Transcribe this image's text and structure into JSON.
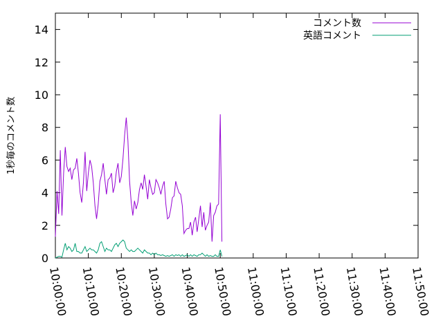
{
  "chart_data": {
    "type": "line",
    "title": "",
    "xlabel": "",
    "ylabel": "1秒毎のコメント数",
    "ylim": [
      0,
      15
    ],
    "y_ticks": [
      0,
      2,
      4,
      6,
      8,
      10,
      12,
      14
    ],
    "x_ticks": [
      "10:00:00",
      "10:10:00",
      "10:20:00",
      "10:30:00",
      "10:40:00",
      "10:50:00",
      "11:00:00",
      "11:10:00",
      "11:20:00",
      "11:30:00",
      "11:40:00",
      "11:50:00"
    ],
    "xlim": [
      "10:00:00",
      "11:50:00"
    ],
    "grid": false,
    "legend_position": "top-right",
    "series": [
      {
        "name": "コメント数",
        "color": "#9400d3",
        "points": [
          [
            "10:00:00",
            1.3
          ],
          [
            "10:00:30",
            4.1
          ],
          [
            "10:01:00",
            2.7
          ],
          [
            "10:01:30",
            6.6
          ],
          [
            "10:02:00",
            2.6
          ],
          [
            "10:02:30",
            5.2
          ],
          [
            "10:03:00",
            6.8
          ],
          [
            "10:03:30",
            5.6
          ],
          [
            "10:04:00",
            5.3
          ],
          [
            "10:04:30",
            5.5
          ],
          [
            "10:05:00",
            4.8
          ],
          [
            "10:05:30",
            5.4
          ],
          [
            "10:06:00",
            5.5
          ],
          [
            "10:06:30",
            6.1
          ],
          [
            "10:07:00",
            5.2
          ],
          [
            "10:07:30",
            4.0
          ],
          [
            "10:08:00",
            3.4
          ],
          [
            "10:08:30",
            4.6
          ],
          [
            "10:09:00",
            6.5
          ],
          [
            "10:09:30",
            4.1
          ],
          [
            "10:10:00",
            5.2
          ],
          [
            "10:10:30",
            6.0
          ],
          [
            "10:11:00",
            5.6
          ],
          [
            "10:11:30",
            4.6
          ],
          [
            "10:12:00",
            3.2
          ],
          [
            "10:12:30",
            2.4
          ],
          [
            "10:13:00",
            3.3
          ],
          [
            "10:13:30",
            4.7
          ],
          [
            "10:14:00",
            5.1
          ],
          [
            "10:14:30",
            5.8
          ],
          [
            "10:15:00",
            4.8
          ],
          [
            "10:15:30",
            3.9
          ],
          [
            "10:16:00",
            4.8
          ],
          [
            "10:16:30",
            4.9
          ],
          [
            "10:17:00",
            5.2
          ],
          [
            "10:17:30",
            4.0
          ],
          [
            "10:18:00",
            4.4
          ],
          [
            "10:18:30",
            5.3
          ],
          [
            "10:19:00",
            5.8
          ],
          [
            "10:19:30",
            4.6
          ],
          [
            "10:20:00",
            5.0
          ],
          [
            "10:20:30",
            6.1
          ],
          [
            "10:21:00",
            7.5
          ],
          [
            "10:21:30",
            8.6
          ],
          [
            "10:22:00",
            7.2
          ],
          [
            "10:22:30",
            4.7
          ],
          [
            "10:23:00",
            3.4
          ],
          [
            "10:23:30",
            2.6
          ],
          [
            "10:24:00",
            3.5
          ],
          [
            "10:24:30",
            3.0
          ],
          [
            "10:25:00",
            3.4
          ],
          [
            "10:25:30",
            4.2
          ],
          [
            "10:26:00",
            4.6
          ],
          [
            "10:26:30",
            4.2
          ],
          [
            "10:27:00",
            5.1
          ],
          [
            "10:27:30",
            4.4
          ],
          [
            "10:28:00",
            3.6
          ],
          [
            "10:28:30",
            4.8
          ],
          [
            "10:29:00",
            4.3
          ],
          [
            "10:29:30",
            3.9
          ],
          [
            "10:30:00",
            4.0
          ],
          [
            "10:30:30",
            4.8
          ],
          [
            "10:31:00",
            4.6
          ],
          [
            "10:31:30",
            4.3
          ],
          [
            "10:32:00",
            3.9
          ],
          [
            "10:32:30",
            4.4
          ],
          [
            "10:33:00",
            4.7
          ],
          [
            "10:33:30",
            3.3
          ],
          [
            "10:34:00",
            2.4
          ],
          [
            "10:34:30",
            2.5
          ],
          [
            "10:35:00",
            3.0
          ],
          [
            "10:35:30",
            3.7
          ],
          [
            "10:36:00",
            3.8
          ],
          [
            "10:36:30",
            4.7
          ],
          [
            "10:37:00",
            4.3
          ],
          [
            "10:37:30",
            4.0
          ],
          [
            "10:38:00",
            3.9
          ],
          [
            "10:38:30",
            3.2
          ],
          [
            "10:39:00",
            1.5
          ],
          [
            "10:39:30",
            1.7
          ],
          [
            "10:40:00",
            1.8
          ],
          [
            "10:40:30",
            1.8
          ],
          [
            "10:41:00",
            2.2
          ],
          [
            "10:41:30",
            1.4
          ],
          [
            "10:42:00",
            2.2
          ],
          [
            "10:42:30",
            2.5
          ],
          [
            "10:43:00",
            1.6
          ],
          [
            "10:43:30",
            2.4
          ],
          [
            "10:44:00",
            3.2
          ],
          [
            "10:44:30",
            1.9
          ],
          [
            "10:45:00",
            2.8
          ],
          [
            "10:45:30",
            1.7
          ],
          [
            "10:46:00",
            2.0
          ],
          [
            "10:46:30",
            2.2
          ],
          [
            "10:47:00",
            3.4
          ],
          [
            "10:47:30",
            1.0
          ],
          [
            "10:48:00",
            2.6
          ],
          [
            "10:48:30",
            2.8
          ],
          [
            "10:49:00",
            3.2
          ],
          [
            "10:49:30",
            3.3
          ],
          [
            "10:50:00",
            8.8
          ],
          [
            "10:50:30",
            1.0
          ]
        ]
      },
      {
        "name": "英語コメント",
        "color": "#009e73",
        "points": [
          [
            "10:00:00",
            0.0
          ],
          [
            "10:00:30",
            0.05
          ],
          [
            "10:01:00",
            0.1
          ],
          [
            "10:01:30",
            0.1
          ],
          [
            "10:02:00",
            0.05
          ],
          [
            "10:02:30",
            0.5
          ],
          [
            "10:03:00",
            0.9
          ],
          [
            "10:03:30",
            0.5
          ],
          [
            "10:04:00",
            0.7
          ],
          [
            "10:04:30",
            0.6
          ],
          [
            "10:05:00",
            0.4
          ],
          [
            "10:05:30",
            0.5
          ],
          [
            "10:06:00",
            0.9
          ],
          [
            "10:06:30",
            0.4
          ],
          [
            "10:07:00",
            0.4
          ],
          [
            "10:07:30",
            0.3
          ],
          [
            "10:08:00",
            0.3
          ],
          [
            "10:08:30",
            0.5
          ],
          [
            "10:09:00",
            0.7
          ],
          [
            "10:09:30",
            0.4
          ],
          [
            "10:10:00",
            0.5
          ],
          [
            "10:10:30",
            0.6
          ],
          [
            "10:11:00",
            0.5
          ],
          [
            "10:11:30",
            0.5
          ],
          [
            "10:12:00",
            0.4
          ],
          [
            "10:12:30",
            0.3
          ],
          [
            "10:13:00",
            0.5
          ],
          [
            "10:13:30",
            0.9
          ],
          [
            "10:14:00",
            1.0
          ],
          [
            "10:14:30",
            0.7
          ],
          [
            "10:15:00",
            0.4
          ],
          [
            "10:15:30",
            0.6
          ],
          [
            "10:16:00",
            0.5
          ],
          [
            "10:16:30",
            0.5
          ],
          [
            "10:17:00",
            0.4
          ],
          [
            "10:17:30",
            0.6
          ],
          [
            "10:18:00",
            0.8
          ],
          [
            "10:18:30",
            0.9
          ],
          [
            "10:19:00",
            0.7
          ],
          [
            "10:19:30",
            0.9
          ],
          [
            "10:20:00",
            1.0
          ],
          [
            "10:20:30",
            1.1
          ],
          [
            "10:21:00",
            1.0
          ],
          [
            "10:21:30",
            0.6
          ],
          [
            "10:22:00",
            0.5
          ],
          [
            "10:22:30",
            0.4
          ],
          [
            "10:23:00",
            0.5
          ],
          [
            "10:23:30",
            0.4
          ],
          [
            "10:24:00",
            0.4
          ],
          [
            "10:24:30",
            0.5
          ],
          [
            "10:25:00",
            0.6
          ],
          [
            "10:25:30",
            0.5
          ],
          [
            "10:26:00",
            0.4
          ],
          [
            "10:26:30",
            0.3
          ],
          [
            "10:27:00",
            0.5
          ],
          [
            "10:27:30",
            0.4
          ],
          [
            "10:28:00",
            0.3
          ],
          [
            "10:28:30",
            0.3
          ],
          [
            "10:29:00",
            0.2
          ],
          [
            "10:29:30",
            0.3
          ],
          [
            "10:30:00",
            0.2
          ],
          [
            "10:30:30",
            0.3
          ],
          [
            "10:31:00",
            0.2
          ],
          [
            "10:31:30",
            0.2
          ],
          [
            "10:32:00",
            0.15
          ],
          [
            "10:32:30",
            0.2
          ],
          [
            "10:33:00",
            0.15
          ],
          [
            "10:33:30",
            0.1
          ],
          [
            "10:34:00",
            0.15
          ],
          [
            "10:34:30",
            0.1
          ],
          [
            "10:35:00",
            0.15
          ],
          [
            "10:35:30",
            0.2
          ],
          [
            "10:36:00",
            0.1
          ],
          [
            "10:36:30",
            0.2
          ],
          [
            "10:37:00",
            0.15
          ],
          [
            "10:37:30",
            0.2
          ],
          [
            "10:38:00",
            0.1
          ],
          [
            "10:38:30",
            0.2
          ],
          [
            "10:39:00",
            0.1
          ],
          [
            "10:39:30",
            0.15
          ],
          [
            "10:40:00",
            0.2
          ],
          [
            "10:40:30",
            0.1
          ],
          [
            "10:41:00",
            0.2
          ],
          [
            "10:41:30",
            0.1
          ],
          [
            "10:42:00",
            0.2
          ],
          [
            "10:42:30",
            0.15
          ],
          [
            "10:43:00",
            0.1
          ],
          [
            "10:43:30",
            0.2
          ],
          [
            "10:44:00",
            0.2
          ],
          [
            "10:44:30",
            0.3
          ],
          [
            "10:45:00",
            0.2
          ],
          [
            "10:45:30",
            0.1
          ],
          [
            "10:46:00",
            0.2
          ],
          [
            "10:46:30",
            0.1
          ],
          [
            "10:47:00",
            0.15
          ],
          [
            "10:47:30",
            0.1
          ],
          [
            "10:48:00",
            0.1
          ],
          [
            "10:48:30",
            0.2
          ],
          [
            "10:49:00",
            0.1
          ],
          [
            "10:49:30",
            0.1
          ],
          [
            "10:50:00",
            0.5
          ],
          [
            "10:50:30",
            0.1
          ]
        ]
      }
    ]
  }
}
